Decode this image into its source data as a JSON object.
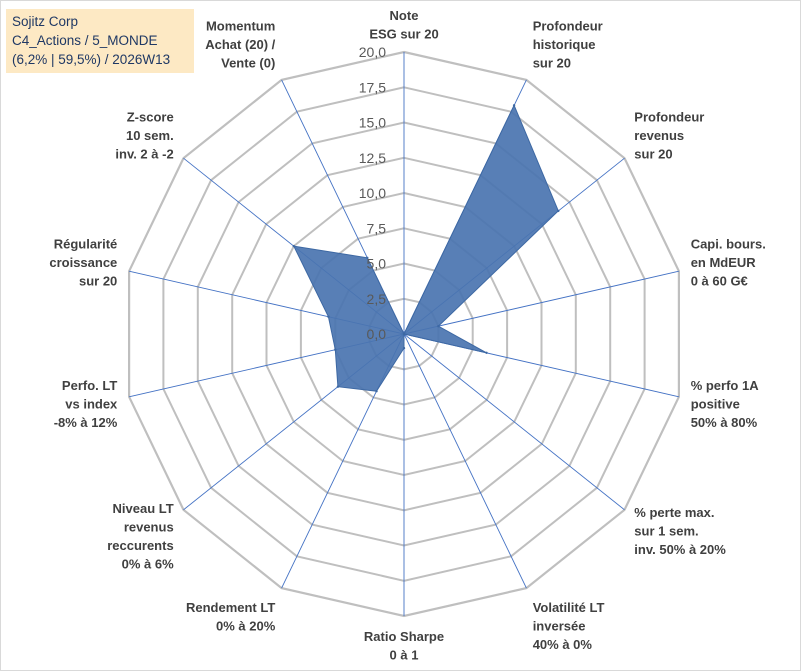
{
  "info": {
    "company": "Sojitz Corp",
    "portfolio": "C4_Actions / 5_MONDE",
    "stats": "(6,2% | 59,5%) / 2026W13"
  },
  "colors": {
    "fill": "#4a74b0",
    "stroke": "#3d68a3",
    "grid": "#bfbfbf",
    "spoke": "#4472c4",
    "info_bg": "#fde9c4",
    "info_text": "#1f3864"
  },
  "chart_data": {
    "type": "radar",
    "title": "",
    "categories": [
      [
        "Note",
        "ESG sur 20"
      ],
      [
        "Profondeur",
        "historique",
        "sur 20"
      ],
      [
        "Profondeur",
        "revenus",
        "sur 20"
      ],
      [
        "Capi. bours.",
        "en MdEUR",
        "0 à 60 G€"
      ],
      [
        "% perfo 1A",
        "positive",
        "50% à 80%"
      ],
      [
        "% perte max.",
        "sur 1 sem.",
        "inv. 50% à 20%"
      ],
      [
        "Volatilité LT",
        "inversée",
        "40% à 0%"
      ],
      [
        "Ratio Sharpe",
        "0 à 1"
      ],
      [
        "Rendement LT",
        "0% à 20%"
      ],
      [
        "Niveau LT",
        "revenus",
        "reccurents",
        "0% à 6%"
      ],
      [
        "Perfo. LT",
        "vs index",
        "-8% à 12%"
      ],
      [
        "Régularité",
        "croissance",
        "sur 20"
      ],
      [
        "Z-score",
        "10 sem.",
        "inv. 2 à -2"
      ],
      [
        "Momentum",
        "Achat (20) /",
        "Vente (0)"
      ]
    ],
    "values": [
      0,
      18,
      14,
      2.5,
      6,
      0,
      0,
      1,
      4.5,
      6,
      5,
      5.5,
      10,
      6
    ],
    "rlim": [
      0,
      20
    ],
    "ticks": [
      "0,0",
      "2,5",
      "5,0",
      "7,5",
      "10,0",
      "12,5",
      "15,0",
      "17,5",
      "20,0"
    ],
    "legend": "none"
  }
}
